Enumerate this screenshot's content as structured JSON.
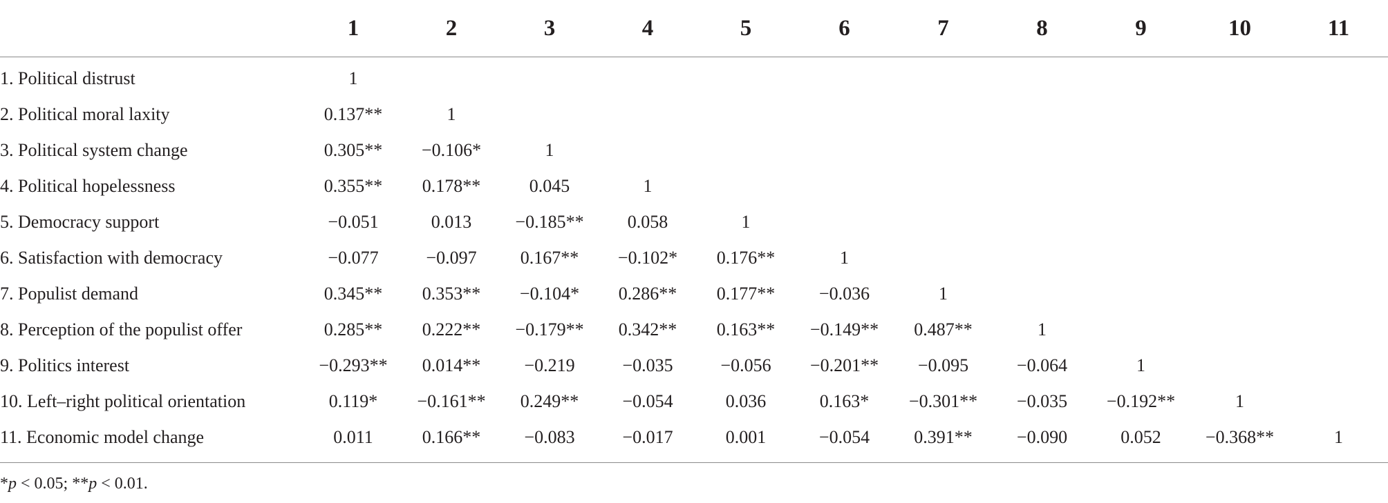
{
  "table": {
    "column_headers": [
      "1",
      "2",
      "3",
      "4",
      "5",
      "6",
      "7",
      "8",
      "9",
      "10",
      "11"
    ],
    "rows": [
      {
        "label": "1. Political distrust",
        "cells": [
          "1",
          "",
          "",
          "",
          "",
          "",
          "",
          "",
          "",
          "",
          ""
        ]
      },
      {
        "label": "2. Political moral laxity",
        "cells": [
          "0.137**",
          "1",
          "",
          "",
          "",
          "",
          "",
          "",
          "",
          "",
          ""
        ]
      },
      {
        "label": "3. Political system change",
        "cells": [
          "0.305**",
          "−0.106*",
          "1",
          "",
          "",
          "",
          "",
          "",
          "",
          "",
          ""
        ]
      },
      {
        "label": "4. Political hopelessness",
        "cells": [
          "0.355**",
          "0.178**",
          "0.045",
          "1",
          "",
          "",
          "",
          "",
          "",
          "",
          ""
        ]
      },
      {
        "label": "5. Democracy support",
        "cells": [
          "−0.051",
          "0.013",
          "−0.185**",
          "0.058",
          "1",
          "",
          "",
          "",
          "",
          "",
          ""
        ]
      },
      {
        "label": "6. Satisfaction with democracy",
        "cells": [
          "−0.077",
          "−0.097",
          "0.167**",
          "−0.102*",
          "0.176**",
          "1",
          "",
          "",
          "",
          "",
          ""
        ]
      },
      {
        "label": "7. Populist demand",
        "cells": [
          "0.345**",
          "0.353**",
          "−0.104*",
          "0.286**",
          "0.177**",
          "−0.036",
          "1",
          "",
          "",
          "",
          ""
        ]
      },
      {
        "label": "8. Perception of the populist offer",
        "cells": [
          "0.285**",
          "0.222**",
          "−0.179**",
          "0.342**",
          "0.163**",
          "−0.149**",
          "0.487**",
          "1",
          "",
          "",
          ""
        ]
      },
      {
        "label": "9. Politics interest",
        "cells": [
          "−0.293**",
          "0.014**",
          "−0.219",
          "−0.035",
          "−0.056",
          "−0.201**",
          "−0.095",
          "−0.064",
          "1",
          "",
          ""
        ]
      },
      {
        "label": "10. Left–right political orientation",
        "cells": [
          "0.119*",
          "−0.161**",
          "0.249**",
          "−0.054",
          "0.036",
          "0.163*",
          "−0.301**",
          "−0.035",
          "−0.192**",
          "1",
          ""
        ]
      },
      {
        "label": "11. Economic model change",
        "cells": [
          "0.011",
          "0.166**",
          "−0.083",
          "−0.017",
          "0.001",
          "−0.054",
          "0.391**",
          "−0.090",
          "0.052",
          "−0.368**",
          "1"
        ]
      }
    ]
  },
  "footnote": {
    "star1": "*",
    "p1": "p",
    "cond1": " < 0.05; ",
    "star2": "**",
    "p2": "p",
    "cond2": " < 0.01."
  }
}
